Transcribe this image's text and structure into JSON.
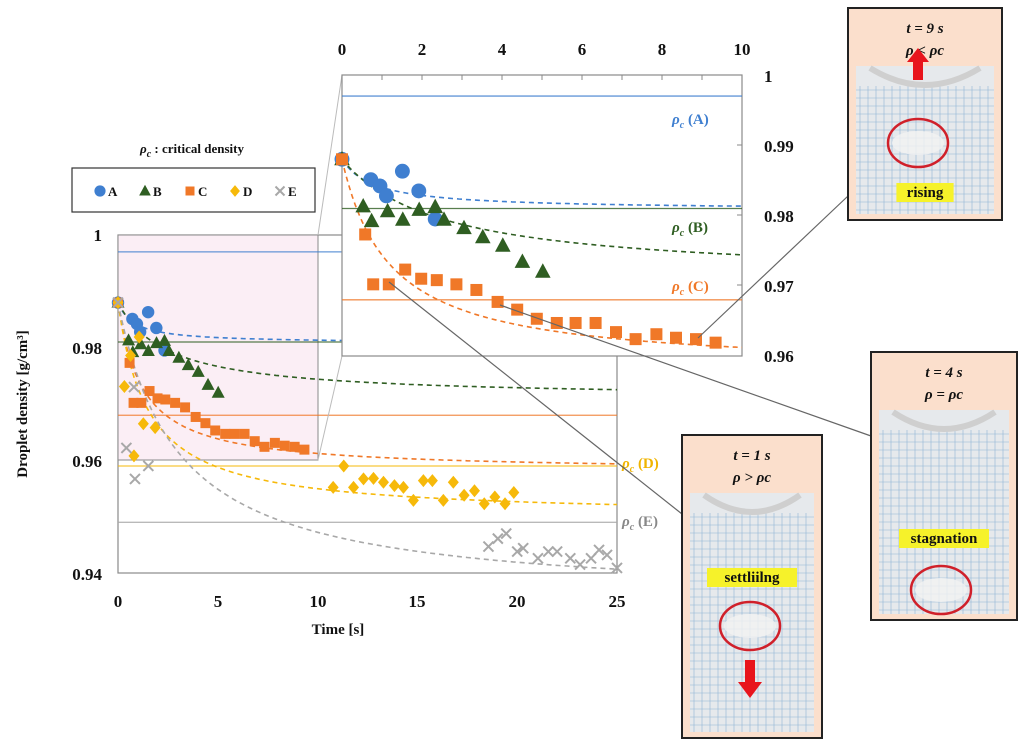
{
  "chart_data": {
    "type": "scatter",
    "title": "",
    "xlabel": "Time [s]",
    "ylabel": "Droplet density [g/cm³]",
    "xlim": [
      0,
      25
    ],
    "ylim": [
      0.94,
      1.0
    ],
    "x_ticks": [
      "0",
      "5",
      "10",
      "15",
      "20",
      "25"
    ],
    "y_ticks": [
      "1",
      "0.98",
      "0.96",
      "0.94"
    ],
    "legend": {
      "title_symbol": "ρ",
      "title_sub": "c",
      "title_text": " : critical density",
      "placement": "top-left",
      "entries": [
        "A",
        "B",
        "C",
        "D",
        "E"
      ]
    },
    "colors": {
      "A": "#3f7fd0",
      "B": "#2f5e22",
      "C": "#f07828",
      "D": "#f6b90a",
      "E": "#a8a8a8"
    },
    "critical_density": {
      "A": {
        "value": 0.997,
        "label_sym": "ρ",
        "label_sub": "c",
        "label": " (A)"
      },
      "B": {
        "value": 0.981,
        "label_sym": "ρ",
        "label_sub": "c",
        "label": " (B)"
      },
      "C": {
        "value": 0.968,
        "label_sym": "ρ",
        "label_sub": "c",
        "label": " (C)"
      },
      "D": {
        "value": 0.959,
        "label_sym": "ρ",
        "label_sub": "c",
        "label": " (D)"
      },
      "E": {
        "value": 0.949,
        "label_sym": "ρ",
        "label_sub": "c",
        "label": " (E)"
      }
    },
    "series": [
      {
        "name": "A",
        "marker": "circle",
        "t": [
          0,
          0.72,
          0.95,
          1.11,
          1.51,
          1.92,
          2.33
        ],
        "rho": [
          0.988,
          0.9851,
          0.9842,
          0.9828,
          0.9863,
          0.9835,
          0.9795
        ]
      },
      {
        "name": "B",
        "marker": "triangle",
        "t": [
          0,
          0.53,
          0.74,
          1.14,
          1.52,
          1.93,
          2.33,
          2.55,
          3.05,
          3.52,
          4.02,
          4.51,
          5.02
        ],
        "rho": [
          0.988,
          0.9813,
          0.9792,
          0.9806,
          0.9794,
          0.9808,
          0.9812,
          0.9794,
          0.9782,
          0.9769,
          0.9757,
          0.9734,
          0.972
        ]
      },
      {
        "name": "C",
        "marker": "square",
        "t": [
          0,
          0.58,
          0.78,
          1.17,
          1.58,
          1.98,
          2.37,
          2.86,
          3.36,
          3.89,
          4.38,
          4.87,
          5.37,
          5.84,
          6.34,
          6.85,
          7.34,
          7.86,
          8.35,
          8.85,
          9.34
        ],
        "rho": [
          0.988,
          0.9773,
          0.9702,
          0.9702,
          0.9723,
          0.971,
          0.9708,
          0.9702,
          0.9694,
          0.9677,
          0.9666,
          0.9653,
          0.9647,
          0.9647,
          0.9647,
          0.9634,
          0.9624,
          0.9631,
          0.9626,
          0.9624,
          0.9619
        ]
      },
      {
        "name": "D",
        "marker": "diamond",
        "t": [
          0,
          0.32,
          0.63,
          1.06,
          0.8,
          1.27,
          1.86,
          10.78,
          11.31,
          11.8,
          12.3,
          12.8,
          13.3,
          13.85,
          14.3,
          14.8,
          15.3,
          15.75,
          16.3,
          16.8,
          17.34,
          17.86,
          18.35,
          18.88,
          19.39,
          19.83
        ],
        "rho": [
          0.988,
          0.9731,
          0.9786,
          0.9819,
          0.9608,
          0.9665,
          0.9658,
          0.9552,
          0.959,
          0.9552,
          0.9567,
          0.9568,
          0.9561,
          0.9555,
          0.9552,
          0.9529,
          0.9564,
          0.9564,
          0.9529,
          0.9561,
          0.9538,
          0.9546,
          0.9523,
          0.9535,
          0.9523,
          0.9543
        ]
      },
      {
        "name": "E",
        "marker": "x",
        "t": [
          0,
          0.42,
          0.8,
          0.85,
          1.52,
          18.56,
          19.03,
          19.45,
          20.0,
          20.3,
          21.04,
          21.56,
          22.0,
          22.66,
          23.15,
          23.7,
          24.1,
          24.5,
          25.0
        ],
        "rho": [
          0.988,
          0.9622,
          0.973,
          0.9567,
          0.959,
          0.9447,
          0.9461,
          0.947,
          0.9438,
          0.9444,
          0.9426,
          0.9438,
          0.9438,
          0.9426,
          0.9415,
          0.9426,
          0.9441,
          0.9432,
          0.9409
        ]
      }
    ],
    "fits": {
      "form": "rho_inf + (rho0 - rho_inf) / (1 + t/tau)",
      "A": {
        "rho0": 0.988,
        "rho_inf": 0.9808,
        "tau": 0.8
      },
      "B": {
        "rho0": 0.988,
        "rho_inf": 0.971,
        "tau": 2.5
      },
      "C": {
        "rho0": 0.988,
        "rho_inf": 0.958,
        "tau": 1.2
      },
      "D": {
        "rho0": 0.988,
        "rho_inf": 0.95,
        "tau": 1.5
      },
      "E": {
        "rho0": 0.988,
        "rho_inf": 0.935,
        "tau": 3.0
      }
    },
    "inset": {
      "xlim": [
        0,
        10
      ],
      "ylim": [
        0.96,
        1.0
      ],
      "x_ticks": [
        "0",
        "2",
        "4",
        "6",
        "8",
        "10"
      ],
      "y_ticks": [
        "1",
        "0.99",
        "0.98",
        "0.97",
        "0.96"
      ],
      "series_shown": [
        "A",
        "B",
        "C"
      ]
    }
  },
  "panels": [
    {
      "time": "t = 9 s",
      "relation": "ρ < ρc",
      "state": "rising"
    },
    {
      "time": "t = 4 s",
      "relation": "ρ = ρc",
      "state": "stagnation"
    },
    {
      "time": "t = 1 s",
      "relation": "ρ > ρc",
      "state": "settliilng"
    }
  ]
}
